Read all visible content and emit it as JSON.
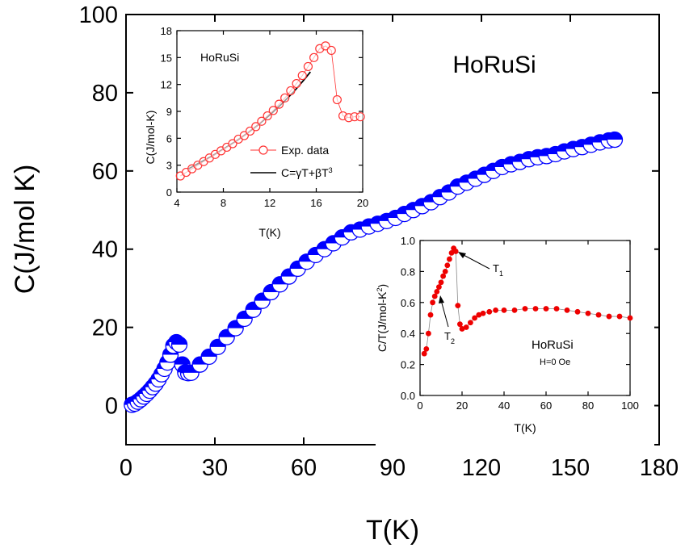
{
  "colors": {
    "main_series": "#0000ff",
    "inset_open": "#ff3333",
    "inset_solid": "#ee0000",
    "fit_line": "#000000"
  },
  "chart_data": [
    {
      "id": "main",
      "type": "scatter",
      "title": "HoRuSi",
      "xlabel": "T(K)",
      "ylabel": "C(J/mol K)",
      "xlim": [
        0,
        180
      ],
      "ylim": [
        -10,
        100
      ],
      "xticks": [
        0,
        30,
        60,
        90,
        120,
        150,
        180
      ],
      "yticks": [
        0,
        20,
        40,
        60,
        80,
        100
      ],
      "marker": "half-filled circle",
      "series": [
        {
          "x": [
            2,
            3,
            4,
            5,
            6,
            7,
            8,
            9,
            10,
            11,
            12,
            13,
            14,
            15,
            16,
            17,
            18,
            19,
            20,
            21,
            22,
            25,
            28,
            31,
            34,
            37,
            40,
            43,
            46,
            49,
            52,
            55,
            58,
            61,
            64,
            67,
            70,
            73,
            76,
            79,
            82,
            85,
            88,
            91,
            94,
            97,
            100,
            103,
            106,
            109,
            112,
            115,
            118,
            121,
            124,
            127,
            130,
            133,
            136,
            139,
            142,
            145,
            148,
            151,
            154,
            157,
            160,
            163,
            165
          ],
          "y": [
            0.2,
            0.5,
            1.0,
            1.6,
            2.3,
            3.0,
            3.8,
            4.7,
            5.6,
            6.7,
            8.0,
            9.4,
            11.0,
            13.0,
            15.3,
            16.2,
            15.6,
            10.5,
            8.5,
            8.3,
            8.4,
            10.5,
            12.5,
            15.0,
            17.5,
            19.8,
            22.2,
            24.5,
            26.8,
            29.0,
            31.0,
            33.0,
            35.0,
            36.8,
            38.5,
            40.0,
            41.5,
            43.0,
            44.3,
            45.0,
            45.8,
            46.5,
            47.2,
            48.0,
            49.0,
            50.0,
            51.0,
            52.0,
            53.3,
            54.5,
            56.0,
            57.0,
            58.0,
            59.0,
            60.0,
            61.0,
            61.7,
            62.3,
            63.0,
            63.5,
            63.8,
            64.3,
            65.0,
            65.6,
            66.1,
            66.7,
            67.3,
            67.8,
            68.0
          ]
        }
      ]
    },
    {
      "id": "inset-top",
      "type": "scatter",
      "title": "HoRuSi",
      "xlabel": "T(K)",
      "ylabel": "C(J/mol-K)",
      "xlim": [
        4,
        20
      ],
      "ylim": [
        0,
        18
      ],
      "xticks": [
        4,
        8,
        12,
        16,
        20
      ],
      "yticks": [
        0,
        3,
        6,
        9,
        12,
        15,
        18
      ],
      "legend_position": "bottom-right",
      "series": [
        {
          "name": "Exp. data",
          "marker": "open circle with line",
          "x": [
            4.3,
            4.8,
            5.3,
            5.8,
            6.3,
            6.8,
            7.3,
            7.8,
            8.3,
            8.8,
            9.3,
            9.8,
            10.3,
            10.8,
            11.3,
            11.8,
            12.3,
            12.8,
            13.3,
            13.8,
            14.3,
            14.8,
            15.3,
            15.8,
            16.3,
            16.8,
            17.3,
            17.8,
            18.3,
            18.8,
            19.3,
            19.8
          ],
          "y": [
            1.8,
            2.2,
            2.6,
            3.0,
            3.4,
            3.8,
            4.2,
            4.6,
            5.0,
            5.4,
            5.9,
            6.3,
            6.8,
            7.3,
            7.9,
            8.5,
            9.1,
            9.8,
            10.5,
            11.3,
            12.1,
            13.0,
            14.0,
            15.0,
            16.0,
            16.3,
            15.8,
            10.3,
            8.5,
            8.3,
            8.4,
            8.4
          ]
        },
        {
          "name": "C=γT+βT³",
          "marker": "line",
          "x": [
            5,
            6,
            7,
            8,
            9,
            10,
            11,
            12,
            13,
            14,
            15,
            15.5
          ],
          "y": [
            2.6,
            3.3,
            4.0,
            4.8,
            5.6,
            6.5,
            7.5,
            8.6,
            9.8,
            11.1,
            12.6,
            13.4
          ]
        }
      ]
    },
    {
      "id": "inset-bottom",
      "type": "scatter",
      "xlabel": "T(K)",
      "ylabel": "C/T(J/mol-K²)",
      "xlim": [
        0,
        100
      ],
      "ylim": [
        0,
        1.0
      ],
      "xticks": [
        0,
        20,
        40,
        60,
        80,
        100
      ],
      "yticks": [
        0.0,
        0.2,
        0.4,
        0.6,
        0.8,
        1.0
      ],
      "annotations": [
        "HoRuSi",
        "H=0 Oe",
        "T₁",
        "T₂"
      ],
      "series": [
        {
          "marker": "filled circle",
          "x": [
            2,
            3,
            4,
            5,
            6,
            7,
            8,
            9,
            10,
            11,
            12,
            13,
            14,
            15,
            16,
            17,
            18,
            19,
            20,
            22,
            24,
            26,
            28,
            30,
            33,
            36,
            40,
            45,
            50,
            55,
            60,
            65,
            70,
            75,
            80,
            85,
            90,
            95,
            100
          ],
          "y": [
            0.27,
            0.3,
            0.4,
            0.52,
            0.6,
            0.64,
            0.67,
            0.7,
            0.73,
            0.77,
            0.8,
            0.84,
            0.88,
            0.92,
            0.95,
            0.93,
            0.58,
            0.46,
            0.43,
            0.44,
            0.47,
            0.5,
            0.52,
            0.53,
            0.54,
            0.55,
            0.55,
            0.55,
            0.56,
            0.56,
            0.56,
            0.56,
            0.55,
            0.54,
            0.53,
            0.52,
            0.51,
            0.51,
            0.5
          ]
        }
      ]
    }
  ]
}
